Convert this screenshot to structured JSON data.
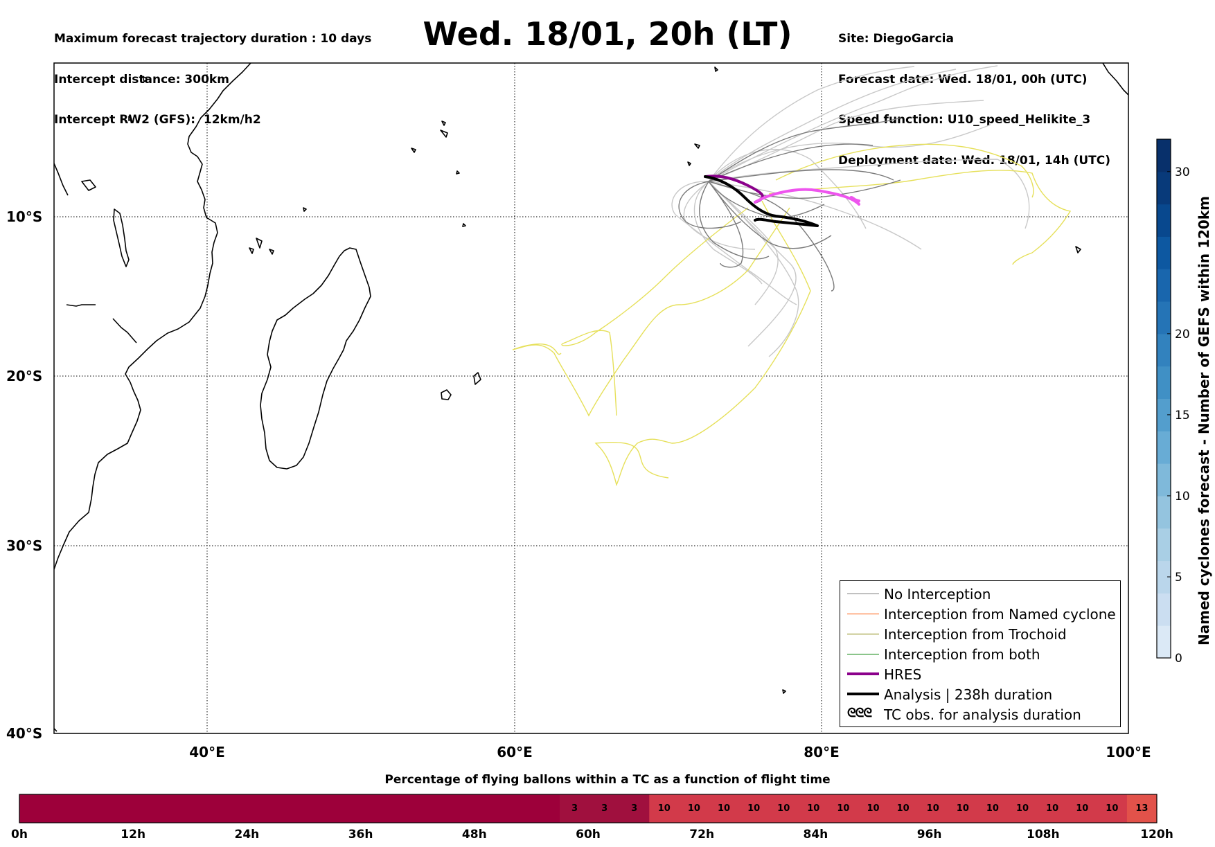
{
  "header": {
    "left_lines": [
      "Maximum forecast trajectory duration : 10 days",
      "Intercept distance: 300km",
      "Intercept RW2 (GFS):  12km/h2"
    ],
    "title": "Wed. 18/01, 20h (LT)",
    "right_lines": [
      "Site: DiegoGarcia",
      "Forecast date: Wed. 18/01, 00h (UTC)",
      "Speed function: U10_speed_Helikite_3",
      "Deployment date: Wed. 18/01, 14h (UTC)"
    ]
  },
  "map": {
    "lon_range": [
      30,
      100
    ],
    "lat_range": [
      -40,
      0
    ],
    "lat_labels": [
      {
        "lat": -10,
        "label": "10°S"
      },
      {
        "lat": -20,
        "label": "20°S"
      },
      {
        "lat": -30,
        "label": "30°S"
      },
      {
        "lat": -40,
        "label": "40°S"
      }
    ],
    "lon_labels": [
      {
        "lon": 40,
        "label": "40°E"
      },
      {
        "lon": 60,
        "label": "60°E"
      },
      {
        "lon": 80,
        "label": "80°E"
      },
      {
        "lon": 100,
        "label": "100°E"
      }
    ],
    "colors": {
      "no_interception": "#7a7a7a",
      "no_interception_light": "#c8c8c8",
      "named_cyclone": "#ff5500",
      "trochoid": "#808000",
      "both": "#008000",
      "hres": "#8b008b",
      "hres_light": "#ee55ee",
      "analysis": "#000000",
      "yellow_tracks": "#e6e05a"
    }
  },
  "legend": {
    "items": [
      {
        "label": "No Interception",
        "color": "#7a7a7a",
        "width": 1
      },
      {
        "label": "Interception from Named cyclone",
        "color": "#ff5500",
        "width": 1
      },
      {
        "label": "Interception from Trochoid",
        "color": "#808000",
        "width": 1
      },
      {
        "label": "Interception from both",
        "color": "#008000",
        "width": 1
      },
      {
        "label": "HRES",
        "color": "#8b008b",
        "width": 4
      },
      {
        "label": "Analysis | 238h duration",
        "color": "#000000",
        "width": 4
      },
      {
        "label": "TC obs. for analysis duration",
        "symbol": "ᘓᘓᘓ"
      }
    ]
  },
  "colorbar": {
    "title": "Named cyclones forecast - Number of GEFS within 120km",
    "range": [
      0,
      32
    ],
    "ticks": [
      0,
      5,
      10,
      15,
      20,
      30
    ],
    "colors": [
      "#dbe9f6",
      "#cbdef1",
      "#bad6eb",
      "#a9cfe5",
      "#94c4df",
      "#7fb9da",
      "#68acd5",
      "#539ecd",
      "#4090c5",
      "#3282be",
      "#2574b6",
      "#1966ad",
      "#0d58a1",
      "#08488e",
      "#083a7a",
      "#08306b"
    ]
  },
  "bottom": {
    "title": "Percentage of flying ballons within a TC as a function of flight time",
    "hours": [
      "0h",
      "12h",
      "24h",
      "36h",
      "48h",
      "60h",
      "72h",
      "84h",
      "96h",
      "108h",
      "120h"
    ],
    "cells": [
      {
        "value": "3",
        "color": "#a0103e"
      },
      {
        "value": "3",
        "color": "#a0103e"
      },
      {
        "value": "3",
        "color": "#a0103e"
      },
      {
        "value": "10",
        "color": "#d23a4a"
      },
      {
        "value": "10",
        "color": "#d23a4a"
      },
      {
        "value": "10",
        "color": "#d23a4a"
      },
      {
        "value": "10",
        "color": "#d23a4a"
      },
      {
        "value": "10",
        "color": "#d23a4a"
      },
      {
        "value": "10",
        "color": "#d23a4a"
      },
      {
        "value": "10",
        "color": "#d23a4a"
      },
      {
        "value": "10",
        "color": "#d23a4a"
      },
      {
        "value": "10",
        "color": "#d23a4a"
      },
      {
        "value": "10",
        "color": "#d23a4a"
      },
      {
        "value": "10",
        "color": "#d23a4a"
      },
      {
        "value": "10",
        "color": "#d23a4a"
      },
      {
        "value": "10",
        "color": "#d23a4a"
      },
      {
        "value": "10",
        "color": "#d23a4a"
      },
      {
        "value": "10",
        "color": "#d23a4a"
      },
      {
        "value": "10",
        "color": "#d23a4a"
      },
      {
        "value": "13",
        "color": "#e2524a"
      }
    ],
    "empty_color": "#9d003a"
  }
}
